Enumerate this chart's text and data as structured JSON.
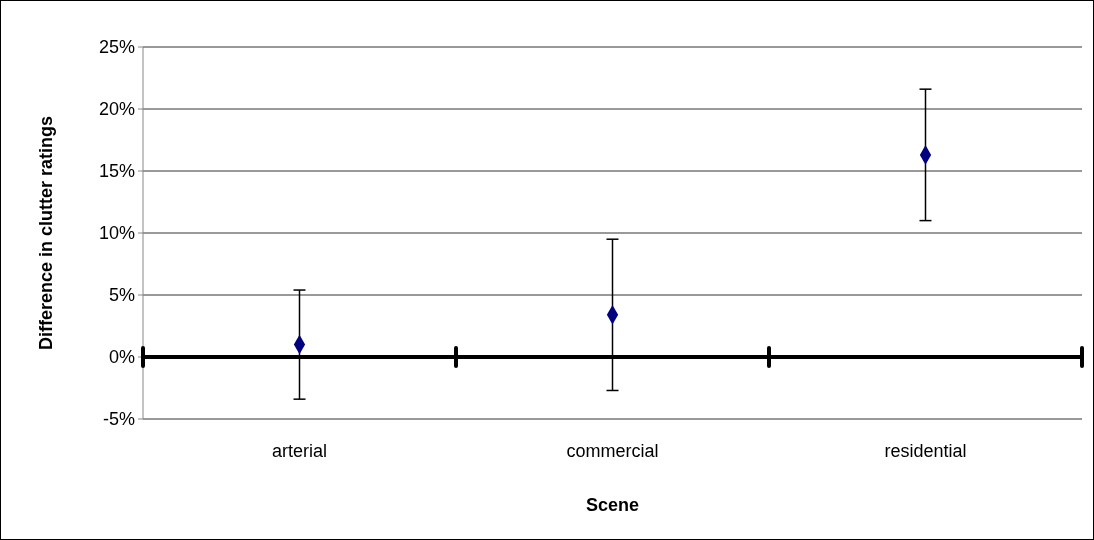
{
  "chart_data": {
    "type": "scatter",
    "xlabel": "Scene",
    "ylabel": "Difference in clutter ratings",
    "categories": [
      "arterial",
      "commercial",
      "residential"
    ],
    "values": [
      1.0,
      3.4,
      16.3
    ],
    "errors": [
      [
        -3.4,
        5.4
      ],
      [
        -2.7,
        9.5
      ],
      [
        11.0,
        21.6
      ]
    ],
    "color": "#000080",
    "marker": "diamond",
    "grid": "y",
    "ylim": [
      -5,
      25
    ],
    "yticks": [
      {
        "value": -5,
        "label": "-5%"
      },
      {
        "value": 0,
        "label": "0%"
      },
      {
        "value": 5,
        "label": "5%"
      },
      {
        "value": 10,
        "label": "10%"
      },
      {
        "value": 15,
        "label": "15%"
      },
      {
        "value": 20,
        "label": "20%"
      },
      {
        "value": 25,
        "label": "25%"
      }
    ]
  }
}
